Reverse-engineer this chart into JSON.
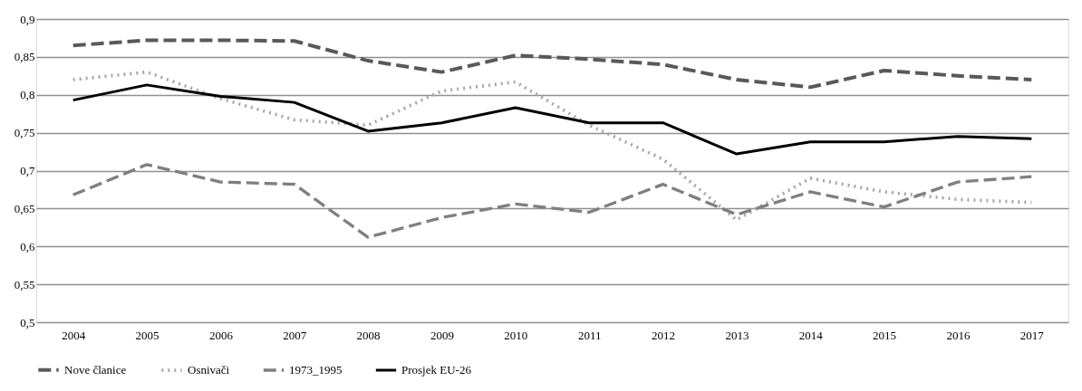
{
  "chart_data": {
    "type": "line",
    "categories": [
      "2004",
      "2005",
      "2006",
      "2007",
      "2008",
      "2009",
      "2010",
      "2011",
      "2012",
      "2013",
      "2014",
      "2015",
      "2016",
      "2017"
    ],
    "series": [
      {
        "name": "Nove članice",
        "color": "#595959",
        "line_style": "dashed",
        "values": [
          0.865,
          0.872,
          0.872,
          0.871,
          0.845,
          0.83,
          0.852,
          0.847,
          0.84,
          0.82,
          0.81,
          0.832,
          0.825,
          0.82
        ]
      },
      {
        "name": "Osnivači",
        "color": "#a6a6a6",
        "line_style": "dotted",
        "values": [
          0.82,
          0.83,
          0.795,
          0.767,
          0.76,
          0.805,
          0.817,
          0.76,
          0.715,
          0.635,
          0.69,
          0.672,
          0.662,
          0.658
        ]
      },
      {
        "name": "1973_1995",
        "color": "#7f7f7f",
        "line_style": "dashed",
        "values": [
          0.668,
          0.708,
          0.685,
          0.682,
          0.612,
          0.638,
          0.656,
          0.645,
          0.682,
          0.642,
          0.672,
          0.652,
          0.685,
          0.692
        ]
      },
      {
        "name": "Prosjek EU-26",
        "color": "#000000",
        "line_style": "solid",
        "values": [
          0.793,
          0.813,
          0.798,
          0.79,
          0.752,
          0.763,
          0.783,
          0.763,
          0.763,
          0.722,
          0.738,
          0.738,
          0.745,
          0.742
        ]
      }
    ],
    "ylim": [
      0.5,
      0.9
    ],
    "yticks": [
      {
        "value": 0.5,
        "label": "0,5"
      },
      {
        "value": 0.55,
        "label": "0,55"
      },
      {
        "value": 0.6,
        "label": "0,6"
      },
      {
        "value": 0.65,
        "label": "0,65"
      },
      {
        "value": 0.7,
        "label": "0,7"
      },
      {
        "value": 0.75,
        "label": "0,75"
      },
      {
        "value": 0.8,
        "label": "0,8"
      },
      {
        "value": 0.85,
        "label": "0,85"
      },
      {
        "value": 0.9,
        "label": "0,9"
      }
    ],
    "grid": "y",
    "legend": "bottom",
    "marker": "none"
  }
}
